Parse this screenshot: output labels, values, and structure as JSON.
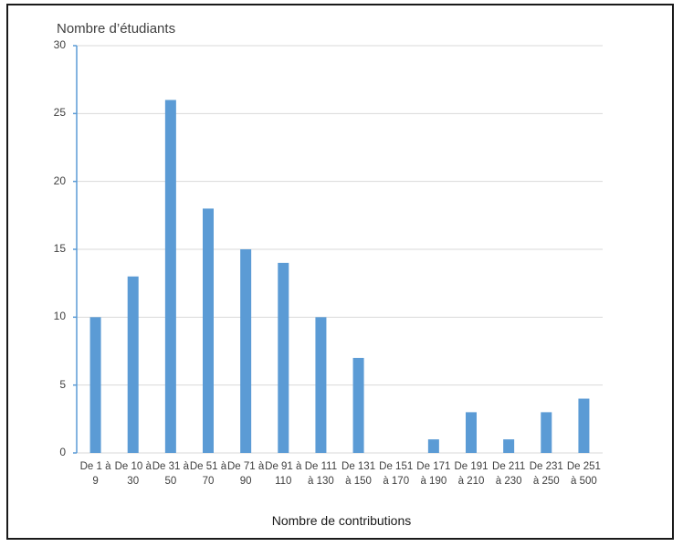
{
  "chart_data": {
    "type": "bar",
    "title": "",
    "ylabel": "Nombre d’étudiants",
    "xlabel": "Nombre de contributions",
    "ylim": [
      0,
      30
    ],
    "yticks": [
      0,
      5,
      10,
      15,
      20,
      25,
      30
    ],
    "grid": true,
    "legend": null,
    "bar_color": "#5b9bd5",
    "categories": [
      [
        "De 1 à",
        "9"
      ],
      [
        "De 10 à",
        "30"
      ],
      [
        "De 31 à",
        "50"
      ],
      [
        "De 51 à",
        "70"
      ],
      [
        "De 71 à",
        "90"
      ],
      [
        "De 91 à",
        "110"
      ],
      [
        "De 111",
        "à 130"
      ],
      [
        "De 131",
        "à 150"
      ],
      [
        "De 151",
        "à 170"
      ],
      [
        "De 171",
        "à 190"
      ],
      [
        "De 191",
        "à 210"
      ],
      [
        "De 211",
        "à 230"
      ],
      [
        "De 231",
        "à 250"
      ],
      [
        "De 251",
        "à 500"
      ]
    ],
    "category_labels": [
      "De 1 à 9",
      "De 10 à 30",
      "De 31 à 50",
      "De 51 à 70",
      "De 71 à 90",
      "De 91 à 110",
      "De 111 à 130",
      "De 131 à 150",
      "De 151 à 170",
      "De 171 à 190",
      "De 191 à 210",
      "De 211 à 230",
      "De 231 à 250",
      "De 251 à 500"
    ],
    "values": [
      10,
      13,
      26,
      18,
      15,
      14,
      10,
      7,
      0,
      1,
      3,
      1,
      3,
      4
    ]
  },
  "colors": {
    "bar": "#5b9bd5",
    "y_axis": "#5b9bd5",
    "grid": "#d9d9d9",
    "text": "#404040",
    "frame": "#1a1a1a"
  }
}
